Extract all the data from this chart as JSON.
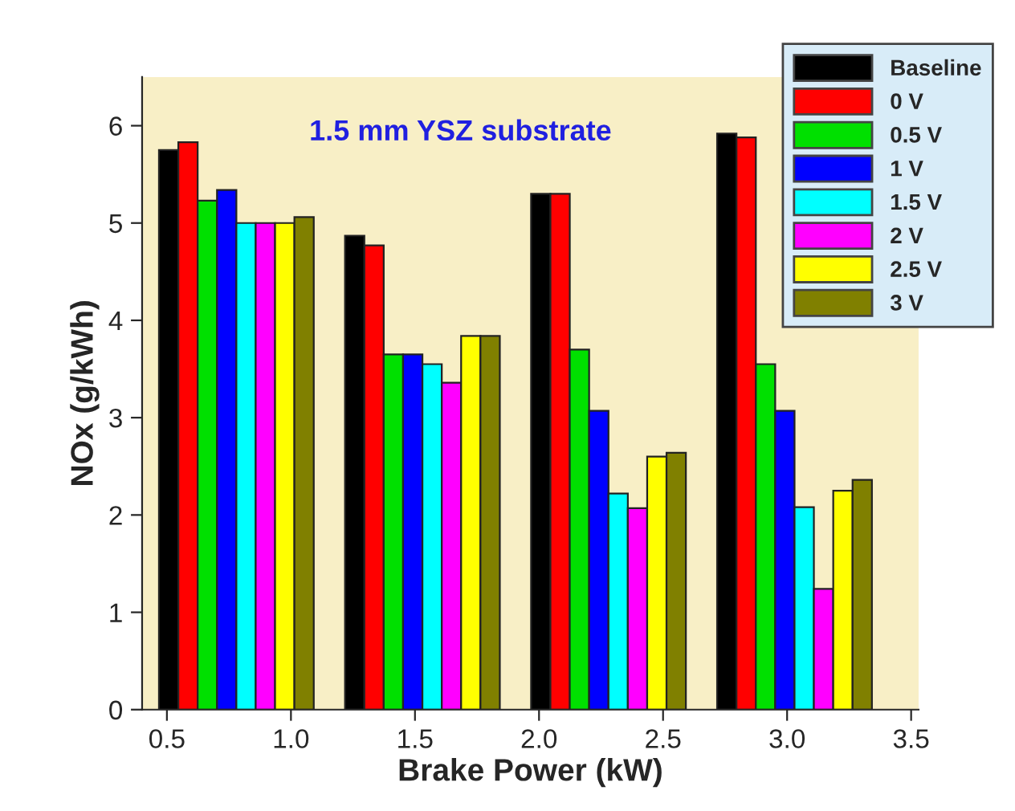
{
  "chart_data": {
    "type": "bar",
    "x": [
      0.78,
      1.53,
      2.28,
      3.03
    ],
    "xlabel": "Brake Power (kW)",
    "ylabel": "NOx (g/kWh)",
    "annotations": [
      "1.5 mm YSZ substrate"
    ],
    "xlim": [
      0.4,
      3.53
    ],
    "xticks": [
      {
        "value": 0.5,
        "label": "0.5"
      },
      {
        "value": 1.0,
        "label": "1.0"
      },
      {
        "value": 1.5,
        "label": "1.5"
      },
      {
        "value": 2.0,
        "label": "2.0"
      },
      {
        "value": 2.5,
        "label": "2.5"
      },
      {
        "value": 3.0,
        "label": "3.0"
      },
      {
        "value": 3.5,
        "label": "3.5"
      }
    ],
    "ylim": [
      0,
      6.5
    ],
    "yticks": [
      0,
      1,
      2,
      3,
      4,
      5,
      6
    ],
    "legend": "top right",
    "grid": false,
    "series": [
      {
        "name": "Baseline",
        "color": "#000000",
        "values": [
          5.75,
          4.87,
          5.3,
          5.92
        ]
      },
      {
        "name": "0 V",
        "color": "#ff0000",
        "values": [
          5.83,
          4.77,
          5.3,
          5.88
        ]
      },
      {
        "name": "0.5 V",
        "color": "#00e000",
        "values": [
          5.23,
          3.65,
          3.7,
          3.55
        ]
      },
      {
        "name": "1 V",
        "color": "#0000ff",
        "values": [
          5.34,
          3.65,
          3.07,
          3.07
        ]
      },
      {
        "name": "1.5 V",
        "color": "#00ffff",
        "values": [
          5.0,
          3.55,
          2.22,
          2.08
        ]
      },
      {
        "name": "2 V",
        "color": "#ff00ff",
        "values": [
          5.0,
          3.36,
          2.07,
          1.24
        ]
      },
      {
        "name": "2.5 V",
        "color": "#ffff00",
        "values": [
          5.0,
          3.84,
          2.6,
          2.25
        ]
      },
      {
        "name": "3 V",
        "color": "#808000",
        "values": [
          5.06,
          3.84,
          2.64,
          2.36
        ]
      }
    ]
  }
}
